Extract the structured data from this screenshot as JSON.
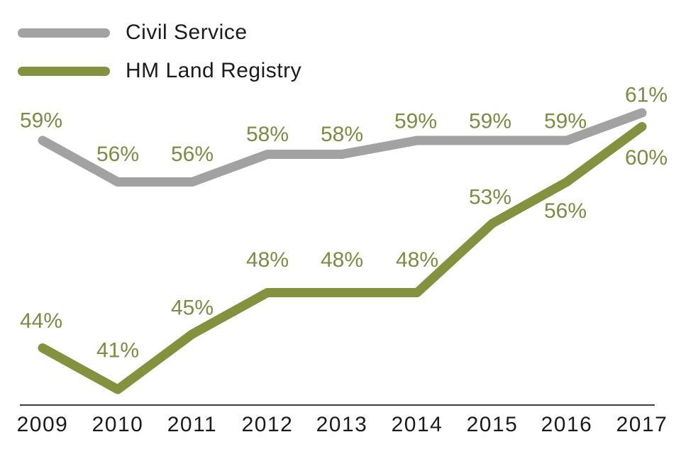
{
  "chart_data": {
    "type": "line",
    "title": "",
    "xlabel": "",
    "ylabel": "",
    "x": [
      "2009",
      "2010",
      "2011",
      "2012",
      "2013",
      "2014",
      "2015",
      "2016",
      "2017"
    ],
    "series": [
      {
        "name": "Civil Service",
        "values": [
          59,
          56,
          56,
          58,
          58,
          59,
          59,
          59,
          61
        ],
        "unit": "%",
        "color": "#a2a2a2"
      },
      {
        "name": "HM Land Registry",
        "values": [
          44,
          41,
          45,
          48,
          48,
          48,
          53,
          56,
          60
        ],
        "unit": "%",
        "color": "#84913f"
      }
    ],
    "data_label_suffix": "%",
    "data_label_color": "#7d8b45",
    "axis_line_color": "#3d3d3d",
    "year_label_color": "#1c1c1c",
    "legend_position": "top-left",
    "grid": false,
    "y_axis_shown": false,
    "ylim": [
      38,
      64
    ]
  }
}
